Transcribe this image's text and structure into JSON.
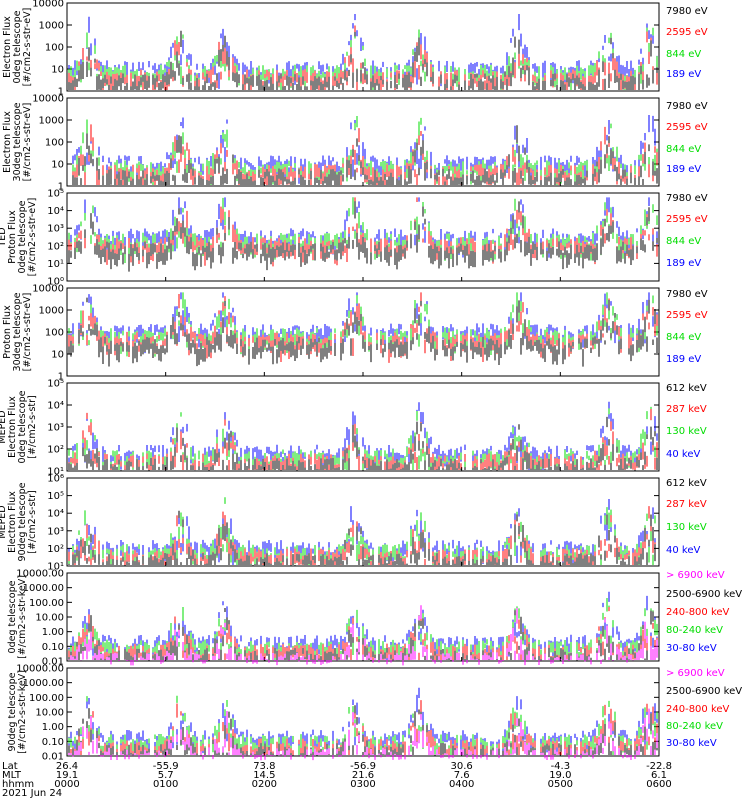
{
  "chart_data": [
    {
      "type": "scatter",
      "ylabel_lines": [
        "Electron Flux",
        "0deg telescope",
        "[#/cm2-s-str-eV]"
      ],
      "ylim": [
        1,
        10000
      ],
      "log": true,
      "yticks": [
        "1",
        "10",
        "100",
        "1000",
        "10000"
      ],
      "series": [
        {
          "name": "7980 eV",
          "color": "#000000"
        },
        {
          "name": "2595 eV",
          "color": "#ff0000"
        },
        {
          "name": "844 eV",
          "color": "#00dd00"
        },
        {
          "name": "189 eV",
          "color": "#0000ff"
        }
      ]
    },
    {
      "type": "scatter",
      "ylabel_lines": [
        "Electron Flux",
        "30deg telescope",
        "[#/cm2-s-str-eV]"
      ],
      "ylim": [
        1,
        10000
      ],
      "log": true,
      "yticks": [
        "1",
        "10",
        "100",
        "1000",
        "10000"
      ],
      "series": [
        {
          "name": "7980 eV",
          "color": "#000000"
        },
        {
          "name": "2595 eV",
          "color": "#ff0000"
        },
        {
          "name": "844 eV",
          "color": "#00dd00"
        },
        {
          "name": "189 eV",
          "color": "#0000ff"
        }
      ]
    },
    {
      "type": "scatter",
      "ylabel_lines": [
        "TED",
        "Proton Flux",
        "0deg telescope",
        "[#/cm2-s-str-eV]"
      ],
      "ylim": [
        1,
        100000
      ],
      "log": true,
      "yticks": [
        "10⁰",
        "10¹",
        "10²",
        "10³",
        "10⁴",
        "10⁵"
      ],
      "series": [
        {
          "name": "7980 eV",
          "color": "#000000"
        },
        {
          "name": "2595 eV",
          "color": "#ff0000"
        },
        {
          "name": "844 eV",
          "color": "#00dd00"
        },
        {
          "name": "189 eV",
          "color": "#0000ff"
        }
      ]
    },
    {
      "type": "scatter",
      "ylabel_lines": [
        "Proton Flux",
        "30deg telescope",
        "[#/cm2-s-str-eV]"
      ],
      "ylim": [
        1,
        10000
      ],
      "log": true,
      "yticks": [
        "1",
        "10",
        "100",
        "1000",
        "10000"
      ],
      "series": [
        {
          "name": "7980 eV",
          "color": "#000000"
        },
        {
          "name": "2595 eV",
          "color": "#ff0000"
        },
        {
          "name": "844 eV",
          "color": "#00dd00"
        },
        {
          "name": "189 eV",
          "color": "#0000ff"
        }
      ]
    },
    {
      "type": "scatter",
      "ylabel_lines": [
        "MEPED",
        "Electron Flux",
        "0deg telescope",
        "[#/cm2-s-str]"
      ],
      "ylim": [
        10,
        100000
      ],
      "log": true,
      "yticks": [
        "10¹",
        "10²",
        "10³",
        "10⁴",
        "10⁵"
      ],
      "series": [
        {
          "name": "612 keV",
          "color": "#000000"
        },
        {
          "name": "287 keV",
          "color": "#ff0000"
        },
        {
          "name": "130 keV",
          "color": "#00dd00"
        },
        {
          "name": "40 keV",
          "color": "#0000ff"
        }
      ]
    },
    {
      "type": "scatter",
      "ylabel_lines": [
        "MEPED",
        "Electron Flux",
        "90deg telescope",
        "[#/cm2-s-str]"
      ],
      "ylim": [
        10,
        1000000
      ],
      "log": true,
      "yticks": [
        "10¹",
        "10²",
        "10³",
        "10⁴",
        "10⁵",
        "10⁶"
      ],
      "series": [
        {
          "name": "612 keV",
          "color": "#000000"
        },
        {
          "name": "287 keV",
          "color": "#ff0000"
        },
        {
          "name": "130 keV",
          "color": "#00dd00"
        },
        {
          "name": "40 keV",
          "color": "#0000ff"
        }
      ]
    },
    {
      "type": "scatter",
      "ylabel_lines": [
        "0deg telescope",
        "[#/cm2-s-str-keV]"
      ],
      "ylim": [
        0.01,
        10000
      ],
      "log": true,
      "yticks": [
        "0.01",
        "0.10",
        "1.00",
        "10.00",
        "100.00",
        "1000.00",
        "10000.00"
      ],
      "series": [
        {
          "name": "> 6900 keV",
          "color": "#ff00ff"
        },
        {
          "name": "2500-6900 keV",
          "color": "#000000"
        },
        {
          "name": "240-800 keV",
          "color": "#ff0000"
        },
        {
          "name": "80-240 keV",
          "color": "#00dd00"
        },
        {
          "name": "30-80 keV",
          "color": "#0000ff"
        }
      ]
    },
    {
      "type": "scatter",
      "ylabel_lines": [
        "90deg telescope",
        "[#/cm2-s-str-keV]"
      ],
      "ylim": [
        0.01,
        10000
      ],
      "log": true,
      "yticks": [
        "0.01",
        "0.10",
        "1.00",
        "10.00",
        "100.00",
        "1000.00",
        "10000.00"
      ],
      "series": [
        {
          "name": "> 6900 keV",
          "color": "#ff00ff"
        },
        {
          "name": "2500-6900 keV",
          "color": "#000000"
        },
        {
          "name": "240-800 keV",
          "color": "#ff0000"
        },
        {
          "name": "80-240 keV",
          "color": "#00dd00"
        },
        {
          "name": "30-80 keV",
          "color": "#0000ff"
        }
      ]
    }
  ],
  "axis": {
    "row_labels": [
      "Lat",
      "MLT",
      "hhmm",
      "2021 Jun 24"
    ],
    "ticks": [
      {
        "lat": "26.4",
        "mlt": "19.1",
        "hhmm": "0000"
      },
      {
        "lat": "-55.9",
        "mlt": "5.7",
        "hhmm": "0100"
      },
      {
        "lat": "73.8",
        "mlt": "14.5",
        "hhmm": "0200"
      },
      {
        "lat": "-56.9",
        "mlt": "21.6",
        "hhmm": "0300"
      },
      {
        "lat": "30.6",
        "mlt": "7.6",
        "hhmm": "0400"
      },
      {
        "lat": "-4.3",
        "mlt": "19.0",
        "hhmm": "0500"
      },
      {
        "lat": "-22.8",
        "mlt": "6.1",
        "hhmm": "0600"
      }
    ]
  }
}
